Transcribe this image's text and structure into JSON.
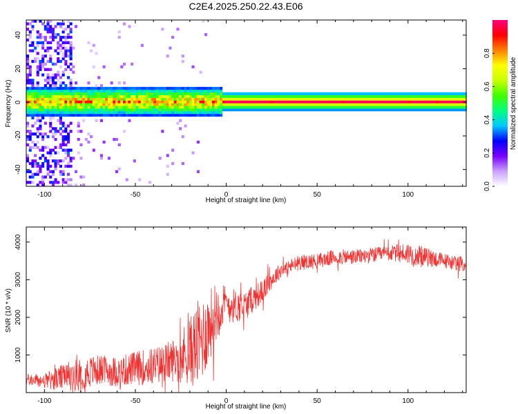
{
  "title": "C2E4.2025.250.22.43.E06",
  "chart_data": [
    {
      "type": "heatmap",
      "name": "spectrogram",
      "xlabel": "Height of straight line (km)",
      "ylabel": "Frequency (Hz)",
      "xlim": [
        -110,
        132
      ],
      "ylim": [
        -50,
        49
      ],
      "xticks": [
        -100,
        -50,
        0,
        50,
        100
      ],
      "yticks": [
        -40,
        -20,
        0,
        20,
        40
      ],
      "xtick_labels": [
        "-100",
        "-50",
        "0",
        "50",
        "100"
      ],
      "ytick_labels": [
        "-40",
        "-20",
        "0",
        "20",
        "40"
      ],
      "colorbar": {
        "label": "Normalized spectral amplitude",
        "range": [
          0,
          1
        ],
        "ticks": [
          0.0,
          0.2,
          0.4,
          0.6,
          0.8
        ],
        "tick_labels": [
          "0.0",
          "0.2",
          "0.4",
          "0.6",
          "0.8"
        ],
        "colors": [
          "#ffffff",
          "#c9a0ff",
          "#7a00ff",
          "#0000ff",
          "#00c8ff",
          "#00ff80",
          "#40ff00",
          "#c8ff00",
          "#ffff00",
          "#ff8000",
          "#ff0000",
          "#ff0080"
        ]
      },
      "band": {
        "center_hz": 0.5,
        "halfwidth_hz_noisy": 6,
        "halfwidth_hz_clean": 2.5,
        "transition_km": -3
      },
      "noise_region_km": [
        -110,
        -85
      ]
    },
    {
      "type": "line",
      "name": "snr",
      "xlabel": "Height of straight line (km)",
      "ylabel": "SNR (10 * v/v)",
      "xlim": [
        -110,
        132
      ],
      "ylim": [
        0,
        4400
      ],
      "xticks": [
        -100,
        -50,
        0,
        50,
        100
      ],
      "yticks": [
        1000,
        2000,
        3000,
        4000
      ],
      "xtick_labels": [
        "-100",
        "-50",
        "0",
        "50",
        "100"
      ],
      "ytick_labels": [
        "1000",
        "2000",
        "3000",
        "4000"
      ],
      "color": "#ee3333",
      "series": [
        {
          "name": "SNR envelope",
          "x": [
            -110,
            -100,
            -90,
            -80,
            -70,
            -60,
            -50,
            -40,
            -30,
            -20,
            -15,
            -10,
            -5,
            0,
            5,
            10,
            15,
            20,
            25,
            30,
            40,
            50,
            60,
            70,
            80,
            90,
            100,
            110,
            120,
            132
          ],
          "mean": [
            350,
            300,
            400,
            500,
            600,
            550,
            650,
            700,
            850,
            1100,
            1300,
            1700,
            2200,
            2350,
            2300,
            2300,
            2500,
            2700,
            3000,
            3250,
            3450,
            3500,
            3600,
            3600,
            3650,
            3700,
            3700,
            3600,
            3500,
            3400
          ],
          "amplitude": [
            150,
            200,
            350,
            450,
            400,
            400,
            450,
            500,
            550,
            900,
            1200,
            1000,
            800,
            500,
            450,
            400,
            350,
            300,
            250,
            200,
            200,
            200,
            200,
            200,
            200,
            200,
            300,
            250,
            200,
            200
          ]
        }
      ]
    }
  ]
}
